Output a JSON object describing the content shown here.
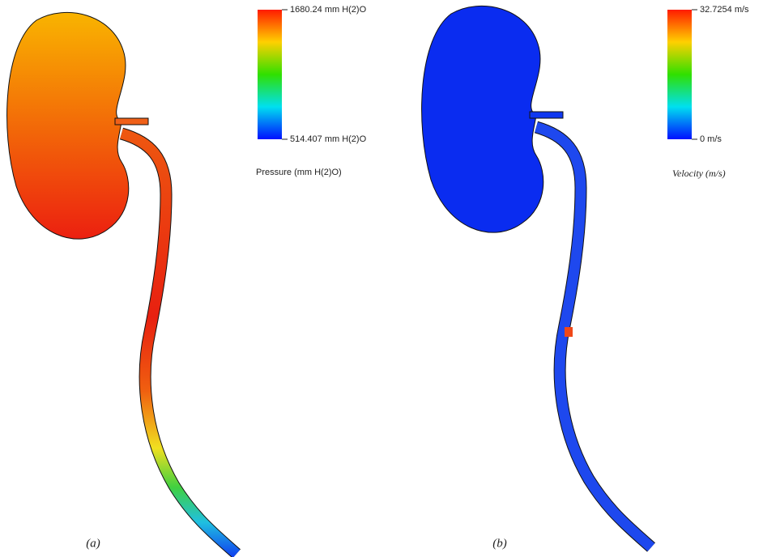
{
  "panels": [
    {
      "label": "(a)",
      "legend": {
        "max": "1680.24 mm H(2)O",
        "min": "514.407 mm H(2)O",
        "title": "Pressure (mm H(2)O)"
      }
    },
    {
      "label": "(b)",
      "legend": {
        "max": "32.7254 m/s",
        "min": "0 m/s",
        "title": "Velocity (m/s)"
      }
    }
  ]
}
